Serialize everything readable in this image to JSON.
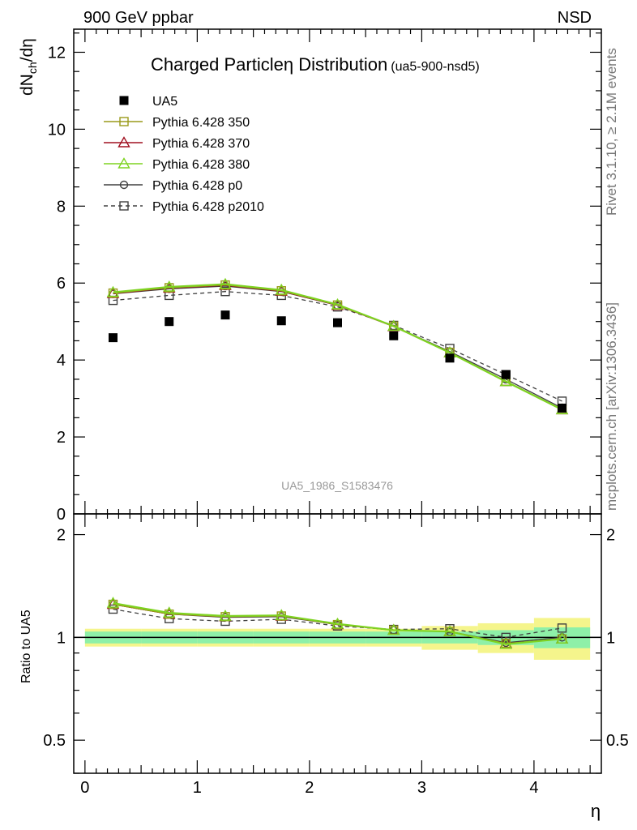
{
  "header": {
    "left": "900 GeV ppbar",
    "right": "NSD"
  },
  "title": {
    "main": "Charged Particleη Distribution",
    "sub": "(ua5-900-nsd5)"
  },
  "watermark": "UA5_1986_S1583476",
  "side_labels": {
    "rivet": "Rivet 3.1.10, ≥ 2.1M events",
    "mcplots": "mcplots.cern.ch [arXiv:1306.3436]"
  },
  "legend": [
    {
      "label": "UA5",
      "color": "#000000",
      "marker": "filled-square",
      "dash": false
    },
    {
      "label": "Pythia 6.428 350",
      "color": "#9a9a1a",
      "marker": "open-square",
      "dash": false
    },
    {
      "label": "Pythia 6.428 370",
      "color": "#a01020",
      "marker": "open-triangle",
      "dash": false
    },
    {
      "label": "Pythia 6.428 380",
      "color": "#7ed321",
      "marker": "open-triangle",
      "dash": false
    },
    {
      "label": "Pythia 6.428 p0",
      "color": "#404040",
      "marker": "open-circle",
      "dash": false
    },
    {
      "label": "Pythia 6.428 p2010",
      "color": "#404040",
      "marker": "open-square",
      "dash": true
    }
  ],
  "chart_data": [
    {
      "type": "scatter",
      "title": "Charged Particleη Distribution",
      "xlabel": "η",
      "ylabel": "dN_ch/dη",
      "xlim": [
        -0.1,
        4.6
      ],
      "ylim": [
        0,
        12.6
      ],
      "yticks": [
        0,
        2,
        4,
        6,
        8,
        10,
        12
      ],
      "xticks": [
        0,
        1,
        2,
        3,
        4
      ],
      "x": [
        0.25,
        0.75,
        1.25,
        1.75,
        2.25,
        2.75,
        3.25,
        3.75,
        4.25
      ],
      "series": [
        {
          "name": "UA5",
          "values": [
            4.58,
            5.0,
            5.17,
            5.02,
            4.97,
            4.63,
            4.05,
            3.62,
            2.75
          ]
        },
        {
          "name": "Pythia 6.428 350",
          "values": [
            5.74,
            5.88,
            5.95,
            5.8,
            5.43,
            4.88,
            4.2,
            3.45,
            2.72
          ]
        },
        {
          "name": "Pythia 6.428 370",
          "values": [
            5.73,
            5.87,
            5.94,
            5.79,
            5.42,
            4.87,
            4.19,
            3.44,
            2.71
          ]
        },
        {
          "name": "Pythia 6.428 380",
          "values": [
            5.76,
            5.9,
            5.97,
            5.82,
            5.44,
            4.88,
            4.19,
            3.44,
            2.71
          ]
        },
        {
          "name": "Pythia 6.428 p0",
          "values": [
            5.72,
            5.85,
            5.92,
            5.78,
            5.42,
            4.88,
            4.22,
            3.5,
            2.75
          ]
        },
        {
          "name": "Pythia 6.428 p2010",
          "values": [
            5.55,
            5.68,
            5.78,
            5.68,
            5.38,
            4.9,
            4.3,
            3.62,
            2.93
          ]
        }
      ]
    },
    {
      "type": "scatter",
      "ylabel": "Ratio to UA5",
      "xlabel": "η",
      "xlim": [
        -0.1,
        4.6
      ],
      "ylim": [
        0.4,
        2.3
      ],
      "yscale": "log",
      "yticks": [
        0.5,
        1,
        2
      ],
      "xticks": [
        0,
        1,
        2,
        3,
        4
      ],
      "x": [
        0.25,
        0.75,
        1.25,
        1.75,
        2.25,
        2.75,
        3.25,
        3.75,
        4.25
      ],
      "band_edges": [
        0,
        0.5,
        1,
        1.5,
        2,
        2.5,
        3,
        3.5,
        4,
        4.5
      ],
      "band_inner": [
        0.04,
        0.04,
        0.04,
        0.04,
        0.04,
        0.04,
        0.04,
        0.05,
        0.07
      ],
      "band_outer": [
        0.06,
        0.06,
        0.06,
        0.06,
        0.06,
        0.06,
        0.08,
        0.1,
        0.14
      ],
      "series": [
        {
          "name": "Pythia 6.428 350",
          "values": [
            1.25,
            1.17,
            1.15,
            1.155,
            1.09,
            1.05,
            1.04,
            0.96,
            0.99
          ]
        },
        {
          "name": "Pythia 6.428 370",
          "values": [
            1.25,
            1.17,
            1.15,
            1.155,
            1.09,
            1.05,
            1.04,
            0.96,
            0.99
          ]
        },
        {
          "name": "Pythia 6.428 380",
          "values": [
            1.26,
            1.18,
            1.155,
            1.16,
            1.095,
            1.05,
            1.04,
            0.955,
            0.99
          ]
        },
        {
          "name": "Pythia 6.428 p0",
          "values": [
            1.25,
            1.17,
            1.145,
            1.15,
            1.09,
            1.05,
            1.04,
            0.965,
            1.0
          ]
        },
        {
          "name": "Pythia 6.428 p2010",
          "values": [
            1.21,
            1.135,
            1.115,
            1.13,
            1.08,
            1.055,
            1.06,
            1.0,
            1.065
          ]
        }
      ]
    }
  ]
}
